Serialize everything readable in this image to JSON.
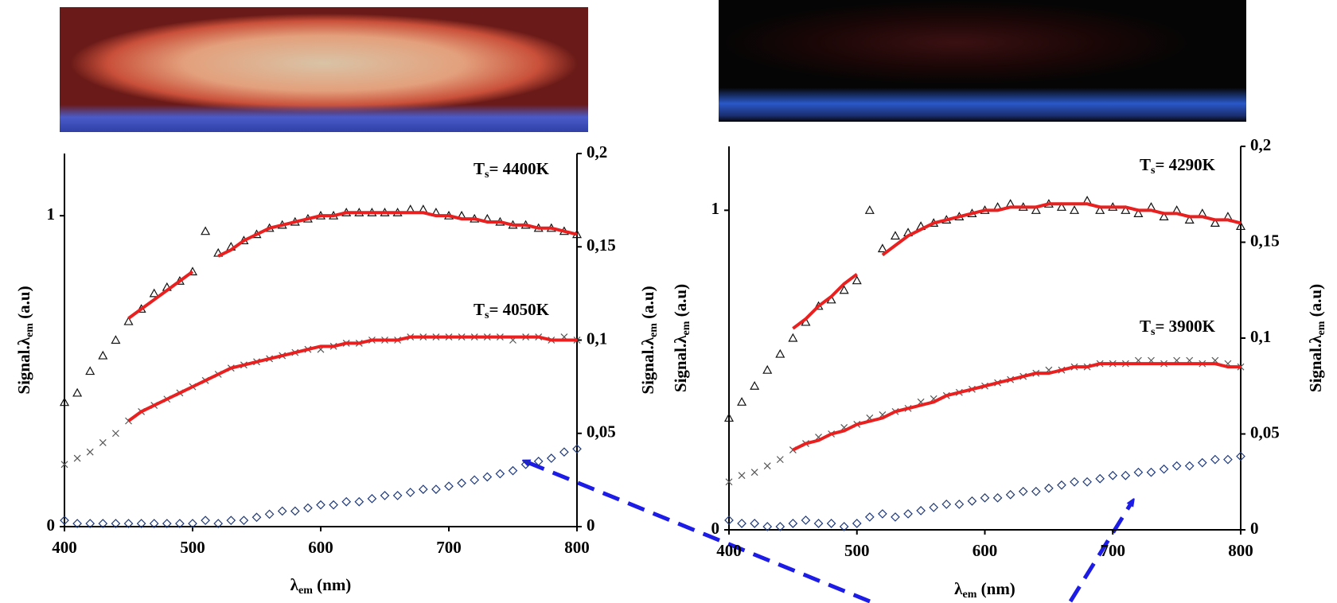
{
  "chart_data": [
    {
      "type": "scatter",
      "x": [
        400,
        410,
        420,
        430,
        440,
        450,
        460,
        470,
        480,
        490,
        500,
        510,
        520,
        530,
        540,
        550,
        560,
        570,
        580,
        590,
        600,
        610,
        620,
        630,
        640,
        650,
        660,
        670,
        680,
        690,
        700,
        710,
        720,
        730,
        740,
        750,
        760,
        770,
        780,
        790,
        800
      ],
      "xlim": [
        400,
        800
      ],
      "xticks": [
        400,
        500,
        600,
        700,
        800
      ],
      "ylim": [
        0,
        1.2
      ],
      "yticks": [
        0,
        1
      ],
      "y2lim": [
        0,
        0.2
      ],
      "y2ticks": [
        0,
        {
          "value": 0.05,
          "label": "0,05"
        },
        {
          "value": 0.1,
          "label": "0,1"
        },
        {
          "value": 0.15,
          "label": "0,15"
        },
        {
          "value": 0.2,
          "label": "0,2"
        }
      ],
      "xlabel": {
        "symbol": "λ",
        "subscript": "em",
        "text": " (nm)"
      },
      "ylabel": {
        "symbol": "Signal.λ",
        "subscript": "em",
        "text": " (a.u)"
      },
      "y2label": {
        "symbol": "Signal.λ",
        "subscript": "em",
        "text": " (a.u)"
      },
      "annotations": [
        {
          "symbol": "T",
          "subscript": "s",
          "text": "= 4400K"
        },
        {
          "symbol": "T",
          "subscript": "s",
          "text": "= 4050K"
        }
      ],
      "series": [
        {
          "marker": "triangle",
          "color": "#111111",
          "values": [
            0.4,
            0.43,
            0.5,
            0.55,
            0.6,
            0.66,
            0.7,
            0.75,
            0.77,
            0.79,
            0.82,
            0.95,
            0.88,
            0.9,
            0.92,
            0.94,
            0.96,
            0.97,
            0.98,
            0.99,
            1.0,
            1.0,
            1.01,
            1.01,
            1.01,
            1.01,
            1.01,
            1.02,
            1.02,
            1.01,
            1.0,
            1.0,
            0.99,
            0.99,
            0.98,
            0.97,
            0.97,
            0.96,
            0.96,
            0.95,
            0.94
          ]
        },
        {
          "marker": "line",
          "color": "#e8201f",
          "values": [
            null,
            null,
            null,
            null,
            null,
            0.67,
            0.7,
            0.73,
            0.76,
            0.79,
            0.82,
            null,
            0.87,
            0.89,
            0.92,
            0.94,
            0.96,
            0.97,
            0.98,
            0.99,
            1.0,
            1.0,
            1.01,
            1.01,
            1.01,
            1.01,
            1.01,
            1.01,
            1.01,
            1.0,
            1.0,
            0.99,
            0.99,
            0.98,
            0.98,
            0.97,
            0.97,
            0.96,
            0.96,
            0.95,
            0.94
          ]
        },
        {
          "marker": "cross",
          "color": "#555555",
          "values": [
            0.2,
            0.22,
            0.24,
            0.27,
            0.3,
            0.34,
            0.37,
            0.39,
            0.41,
            0.43,
            0.45,
            0.47,
            0.49,
            0.51,
            0.52,
            0.53,
            0.54,
            0.55,
            0.56,
            0.57,
            0.57,
            0.58,
            0.59,
            0.59,
            0.6,
            0.6,
            0.6,
            0.61,
            0.61,
            0.61,
            0.61,
            0.61,
            0.61,
            0.61,
            0.61,
            0.6,
            0.61,
            0.61,
            0.6,
            0.61,
            0.6
          ]
        },
        {
          "marker": "line",
          "color": "#e8201f",
          "values": [
            null,
            null,
            null,
            null,
            null,
            0.34,
            0.37,
            0.39,
            0.41,
            0.43,
            0.45,
            0.47,
            0.49,
            0.51,
            0.52,
            0.53,
            0.54,
            0.55,
            0.56,
            0.57,
            0.58,
            0.58,
            0.59,
            0.59,
            0.6,
            0.6,
            0.6,
            0.61,
            0.61,
            0.61,
            0.61,
            0.61,
            0.61,
            0.61,
            0.61,
            0.61,
            0.61,
            0.61,
            0.6,
            0.6,
            0.6
          ]
        },
        {
          "marker": "diamond",
          "color": "#1f3a7a",
          "values": [
            0.02,
            0.01,
            0.01,
            0.01,
            0.01,
            0.01,
            0.01,
            0.01,
            0.01,
            0.01,
            0.01,
            0.02,
            0.01,
            0.02,
            0.02,
            0.03,
            0.04,
            0.05,
            0.05,
            0.06,
            0.07,
            0.07,
            0.08,
            0.08,
            0.09,
            0.1,
            0.1,
            0.11,
            0.12,
            0.12,
            0.13,
            0.14,
            0.15,
            0.16,
            0.17,
            0.18,
            0.2,
            0.21,
            0.22,
            0.24,
            0.25
          ]
        }
      ]
    },
    {
      "type": "scatter",
      "x": [
        400,
        410,
        420,
        430,
        440,
        450,
        460,
        470,
        480,
        490,
        500,
        510,
        520,
        530,
        540,
        550,
        560,
        570,
        580,
        590,
        600,
        610,
        620,
        630,
        640,
        650,
        660,
        670,
        680,
        690,
        700,
        710,
        720,
        730,
        740,
        750,
        760,
        770,
        780,
        790,
        800
      ],
      "xlim": [
        400,
        800
      ],
      "xticks": [
        400,
        500,
        600,
        700,
        800
      ],
      "ylim": [
        0,
        1.2
      ],
      "yticks": [
        0,
        1
      ],
      "y2lim": [
        0,
        0.2
      ],
      "y2ticks": [
        0,
        {
          "value": 0.05,
          "label": "0,05"
        },
        {
          "value": 0.1,
          "label": "0,1"
        },
        {
          "value": 0.15,
          "label": "0,15"
        },
        {
          "value": 0.2,
          "label": "0,2"
        }
      ],
      "xlabel": {
        "symbol": "λ",
        "subscript": "em",
        "text": " (nm)"
      },
      "ylabel": {
        "symbol": "Signal.λ",
        "subscript": "em",
        "text": " (a.u)"
      },
      "y2label": {
        "symbol": "Signal.λ",
        "subscript": "em",
        "text": " (a.u)"
      },
      "annotations": [
        {
          "symbol": "T",
          "subscript": "s",
          "text": "= 4290K"
        },
        {
          "symbol": "T",
          "subscript": "s",
          "text": "= 3900K"
        }
      ],
      "series": [
        {
          "marker": "triangle",
          "color": "#111111",
          "values": [
            0.35,
            0.4,
            0.45,
            0.5,
            0.55,
            0.6,
            0.65,
            0.7,
            0.72,
            0.75,
            0.78,
            1.0,
            0.88,
            0.92,
            0.93,
            0.95,
            0.96,
            0.97,
            0.98,
            0.99,
            1.0,
            1.01,
            1.02,
            1.01,
            1.0,
            1.02,
            1.01,
            1.0,
            1.03,
            1.0,
            1.01,
            1.0,
            0.99,
            1.01,
            0.98,
            1.0,
            0.97,
            0.99,
            0.96,
            0.98,
            0.95
          ]
        },
        {
          "marker": "line",
          "color": "#e8201f",
          "values": [
            null,
            null,
            null,
            null,
            null,
            0.63,
            0.66,
            0.7,
            0.73,
            0.77,
            0.8,
            null,
            0.86,
            0.89,
            0.92,
            0.94,
            0.96,
            0.97,
            0.98,
            0.99,
            1.0,
            1.0,
            1.01,
            1.01,
            1.01,
            1.02,
            1.02,
            1.02,
            1.02,
            1.01,
            1.01,
            1.01,
            1.0,
            1.0,
            0.99,
            0.99,
            0.98,
            0.98,
            0.97,
            0.97,
            0.96
          ]
        },
        {
          "marker": "cross",
          "color": "#555555",
          "values": [
            0.15,
            0.17,
            0.18,
            0.2,
            0.22,
            0.25,
            0.27,
            0.29,
            0.3,
            0.32,
            0.33,
            0.35,
            0.36,
            0.37,
            0.38,
            0.4,
            0.41,
            0.42,
            0.43,
            0.44,
            0.45,
            0.46,
            0.47,
            0.48,
            0.49,
            0.5,
            0.5,
            0.51,
            0.51,
            0.52,
            0.52,
            0.52,
            0.53,
            0.53,
            0.52,
            0.53,
            0.53,
            0.52,
            0.53,
            0.52,
            0.51
          ]
        },
        {
          "marker": "line",
          "color": "#e8201f",
          "values": [
            null,
            null,
            null,
            null,
            null,
            0.25,
            0.27,
            0.28,
            0.3,
            0.31,
            0.33,
            0.34,
            0.35,
            0.37,
            0.38,
            0.39,
            0.4,
            0.42,
            0.43,
            0.44,
            0.45,
            0.46,
            0.47,
            0.48,
            0.49,
            0.49,
            0.5,
            0.51,
            0.51,
            0.52,
            0.52,
            0.52,
            0.52,
            0.52,
            0.52,
            0.52,
            0.52,
            0.52,
            0.52,
            0.51,
            0.51
          ]
        },
        {
          "marker": "diamond",
          "color": "#1f3a7a",
          "values": [
            0.03,
            0.02,
            0.02,
            0.01,
            0.01,
            0.02,
            0.03,
            0.02,
            0.02,
            0.01,
            0.02,
            0.04,
            0.05,
            0.04,
            0.05,
            0.06,
            0.07,
            0.08,
            0.08,
            0.09,
            0.1,
            0.1,
            0.11,
            0.12,
            0.12,
            0.13,
            0.14,
            0.15,
            0.15,
            0.16,
            0.17,
            0.17,
            0.18,
            0.18,
            0.19,
            0.2,
            0.2,
            0.21,
            0.22,
            0.22,
            0.23
          ]
        }
      ]
    }
  ]
}
